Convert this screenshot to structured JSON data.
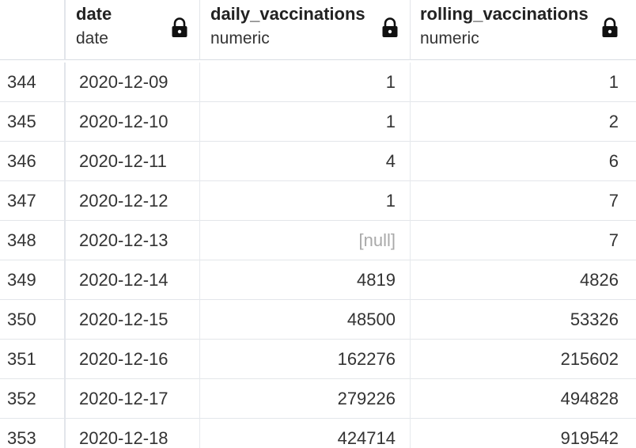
{
  "columns": [
    {
      "name": "date",
      "type": "date"
    },
    {
      "name": "daily_vaccinations",
      "type": "numeric"
    },
    {
      "name": "rolling_vaccinations",
      "type": "numeric"
    }
  ],
  "icons": {
    "column_lock": "lock-icon"
  },
  "rows": [
    {
      "num": "344",
      "date": "2020-12-09",
      "daily": "1",
      "rolling": "1"
    },
    {
      "num": "345",
      "date": "2020-12-10",
      "daily": "1",
      "rolling": "2"
    },
    {
      "num": "346",
      "date": "2020-12-11",
      "daily": "4",
      "rolling": "6"
    },
    {
      "num": "347",
      "date": "2020-12-12",
      "daily": "1",
      "rolling": "7"
    },
    {
      "num": "348",
      "date": "2020-12-13",
      "daily": "[null]",
      "rolling": "7"
    },
    {
      "num": "349",
      "date": "2020-12-14",
      "daily": "4819",
      "rolling": "4826"
    },
    {
      "num": "350",
      "date": "2020-12-15",
      "daily": "48500",
      "rolling": "53326"
    },
    {
      "num": "351",
      "date": "2020-12-16",
      "daily": "162276",
      "rolling": "215602"
    },
    {
      "num": "352",
      "date": "2020-12-17",
      "daily": "279226",
      "rolling": "494828"
    },
    {
      "num": "353",
      "date": "2020-12-18",
      "daily": "424714",
      "rolling": "919542"
    }
  ]
}
